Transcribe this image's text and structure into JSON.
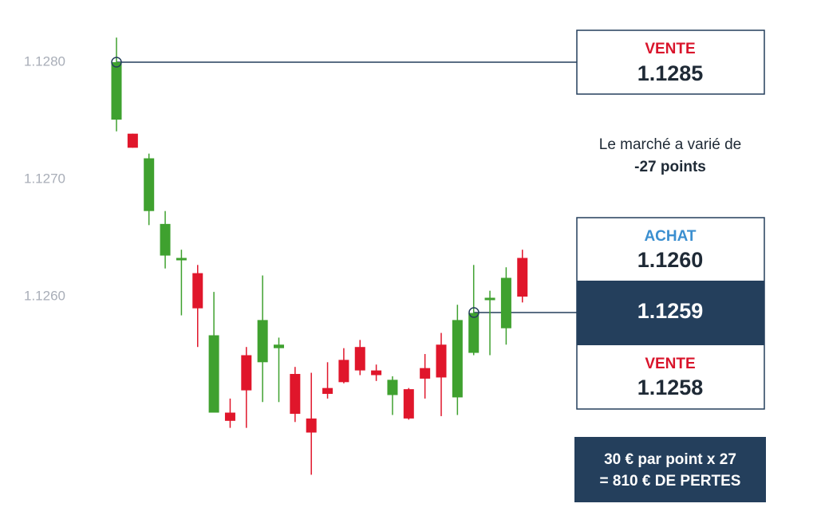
{
  "chart_data": {
    "type": "candlestick",
    "ylim": [
      1.1243,
      1.1283
    ],
    "yticks": [
      {
        "value": 1.128,
        "label": "1.1280"
      },
      {
        "value": 1.127,
        "label": "1.1270"
      },
      {
        "value": 1.126,
        "label": "1.1260"
      }
    ],
    "grid": false,
    "up_color": "#3fa12f",
    "down_color": "#e0162b",
    "open": [
      1.12751,
      1.12739,
      1.12673,
      1.12635,
      1.12631,
      1.1262,
      1.12501,
      1.12501,
      1.1255,
      1.12544,
      1.12556,
      1.12534,
      1.12496,
      1.12522,
      1.12546,
      1.12557,
      1.12537,
      1.12516,
      1.12521,
      1.12539,
      1.12559,
      1.12514,
      1.12552,
      1.12597,
      1.12573,
      1.12633
    ],
    "high": [
      1.12821,
      1.12739,
      1.12722,
      1.12673,
      1.1264,
      1.12627,
      1.12604,
      1.12513,
      1.12557,
      1.12618,
      1.12565,
      1.1254,
      1.12535,
      1.12544,
      1.12556,
      1.12563,
      1.12542,
      1.12532,
      1.12522,
      1.12551,
      1.12569,
      1.12593,
      1.12627,
      1.12605,
      1.12625,
      1.1264
    ],
    "low": [
      1.12741,
      1.12727,
      1.12661,
      1.12624,
      1.12584,
      1.12557,
      1.12501,
      1.12488,
      1.12488,
      1.1251,
      1.1251,
      1.12493,
      1.12448,
      1.12513,
      1.12526,
      1.12533,
      1.12528,
      1.12499,
      1.12495,
      1.12513,
      1.12498,
      1.12499,
      1.1255,
      1.1255,
      1.12559,
      1.12595
    ],
    "close": [
      1.128,
      1.12727,
      1.12718,
      1.12662,
      1.12633,
      1.1259,
      1.12567,
      1.12494,
      1.1252,
      1.1258,
      1.12559,
      1.125,
      1.12484,
      1.12517,
      1.12527,
      1.12537,
      1.12533,
      1.12529,
      1.12496,
      1.1253,
      1.12531,
      1.1258,
      1.12586,
      1.12599,
      1.12616,
      1.126
    ],
    "annotations": {
      "entry_label": "VENTE",
      "entry_price": "1.1285",
      "change_text": "Le marché a varié de",
      "change_points": "-27 points",
      "buy_label": "ACHAT",
      "buy_price": "1.1260",
      "mid_price": "1.1259",
      "sell_label": "VENTE",
      "sell_price": "1.1258",
      "result_line1": "30 € par point x 27",
      "result_line2": "= 810 € DE PERTES"
    }
  }
}
